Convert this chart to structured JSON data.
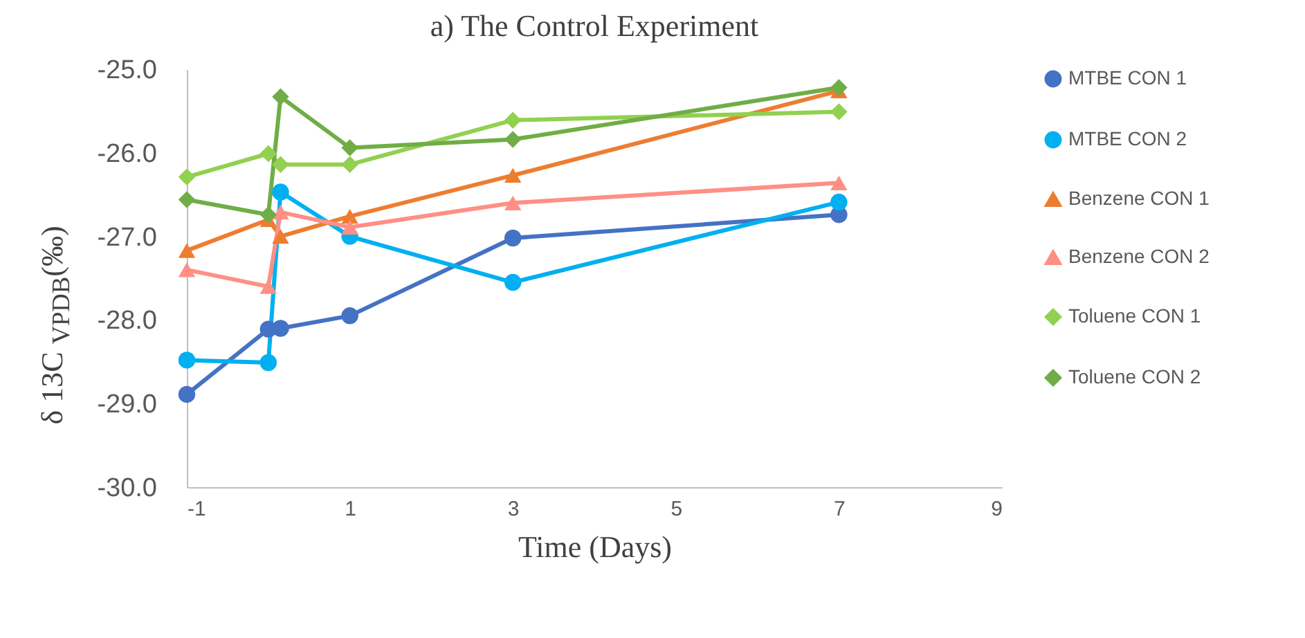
{
  "chart_data": {
    "type": "line",
    "title": "a) The Control Experiment",
    "xlabel": "Time (Days)",
    "ylabel": "δ 13C $_{VPDB}$(‰)",
    "x": [
      -1,
      0,
      0.15,
      1,
      3,
      7
    ],
    "xlim": [
      -1,
      9
    ],
    "xticks": [
      -1,
      1,
      3,
      5,
      7,
      9
    ],
    "ylim": [
      -30,
      -25
    ],
    "yticks": [
      {
        "value": -30,
        "label": "-30.0"
      },
      {
        "value": -29,
        "label": "-29.0"
      },
      {
        "value": -28,
        "label": "-28.0"
      },
      {
        "value": -27,
        "label": "-27.0"
      },
      {
        "value": -26,
        "label": "-26.0"
      },
      {
        "value": -25,
        "label": "-25.0"
      }
    ],
    "grid": false,
    "legend": "right",
    "line_style": "solid",
    "series": [
      {
        "name": "MTBE CON 1",
        "color": "#4472c4",
        "marker": "circle",
        "values": [
          -28.89,
          -28.11,
          -28.1,
          -27.95,
          -27.02,
          -26.74
        ]
      },
      {
        "name": "MTBE CON 2",
        "color": "#00b0f0",
        "marker": "circle",
        "values": [
          -28.48,
          -28.51,
          -26.47,
          -27.0,
          -27.55,
          -26.59
        ]
      },
      {
        "name": "Benzene CON 1",
        "color": "#ed7d31",
        "marker": "triangle",
        "values": [
          -27.17,
          -26.8,
          -27.0,
          -26.76,
          -26.27,
          -25.26
        ]
      },
      {
        "name": "Benzene CON 2",
        "color": "#ff8f85",
        "marker": "triangle",
        "values": [
          -27.4,
          -27.6,
          -26.71,
          -26.89,
          -26.6,
          -26.36
        ]
      },
      {
        "name": "Toluene CON 1",
        "color": "#92d050",
        "marker": "diamond",
        "values": [
          -26.29,
          -26.01,
          -26.14,
          -26.14,
          -25.61,
          -25.51
        ]
      },
      {
        "name": "Toluene CON 2",
        "color": "#70ad47",
        "marker": "diamond",
        "values": [
          -26.56,
          -26.74,
          -25.33,
          -25.94,
          -25.84,
          -25.22
        ]
      }
    ]
  }
}
